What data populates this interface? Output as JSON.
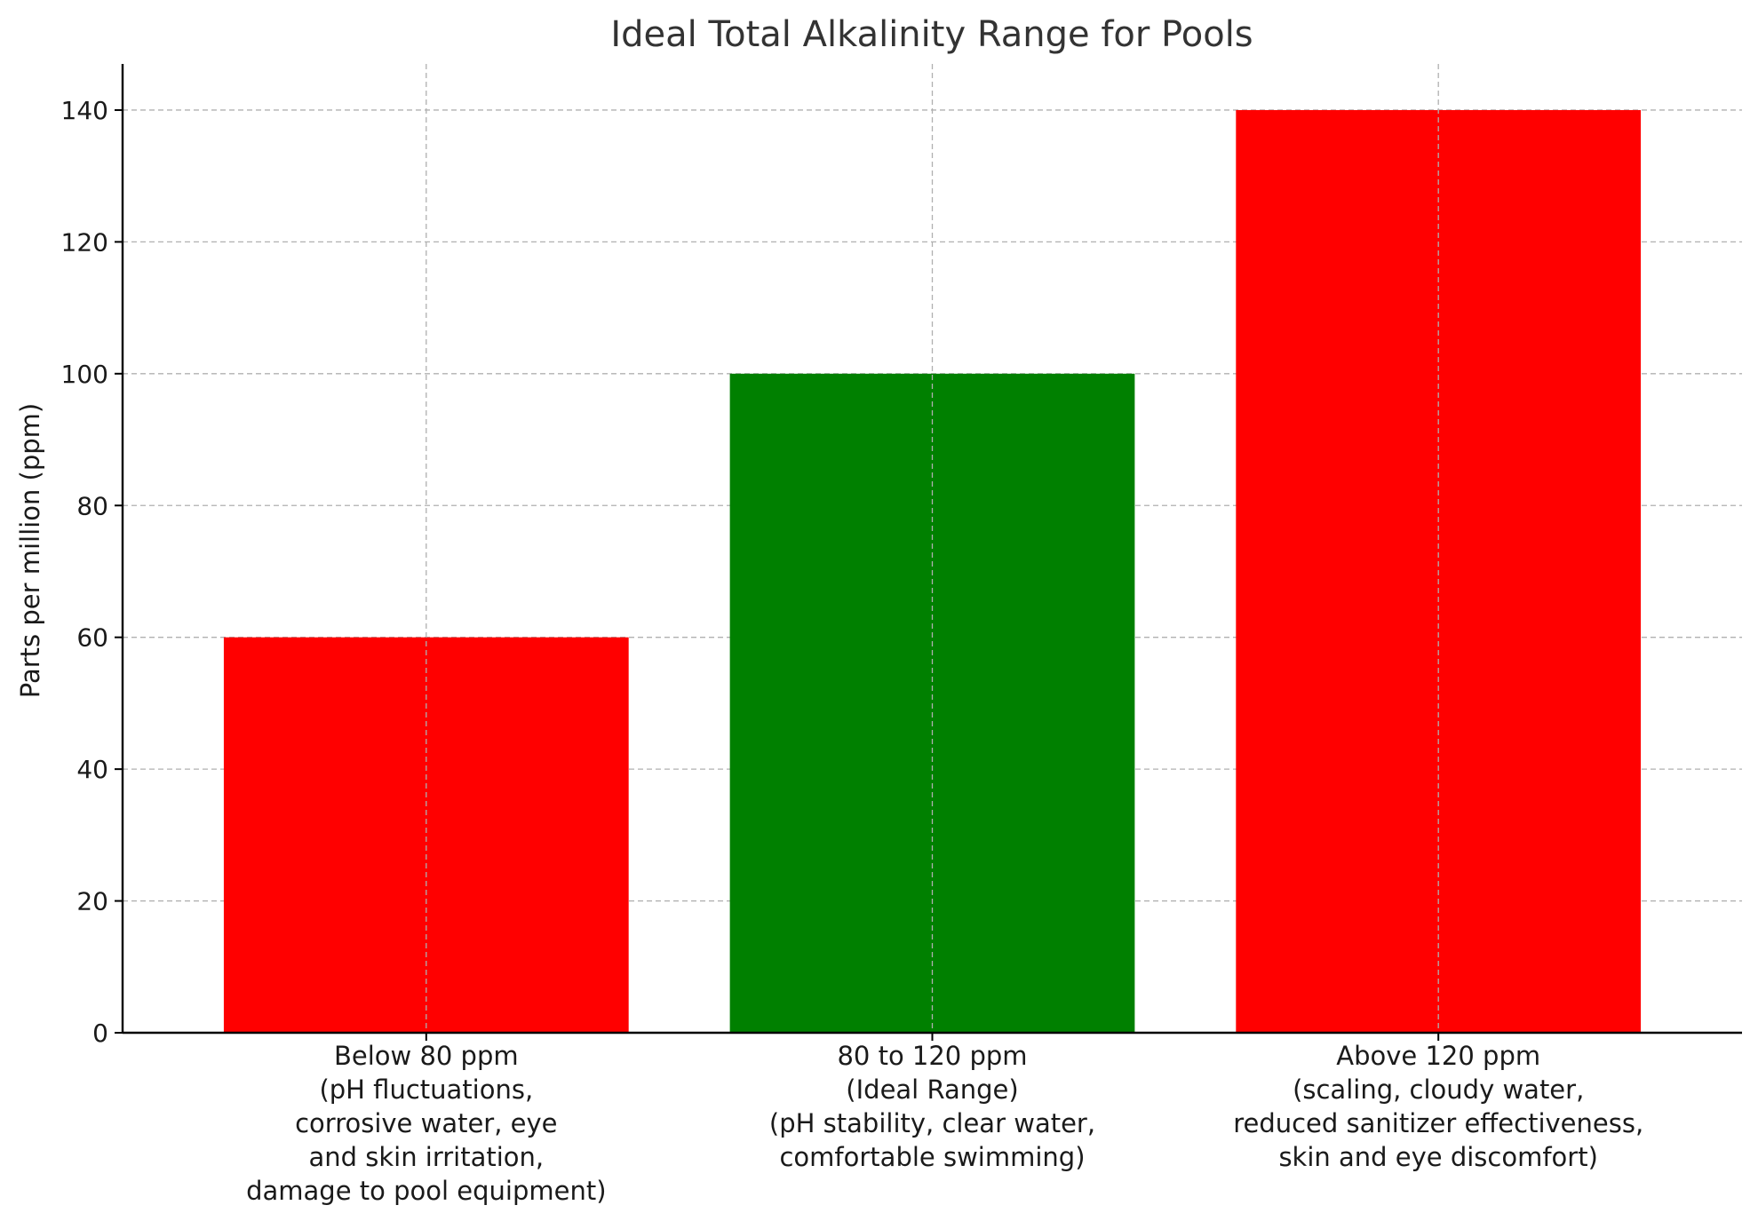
{
  "chart_data": {
    "type": "bar",
    "title": "Ideal Total Alkalinity Range for Pools",
    "xlabel": "",
    "ylabel": "Parts per million (ppm)",
    "ylim": [
      0,
      147
    ],
    "yticks": [
      0,
      20,
      40,
      60,
      80,
      100,
      120,
      140
    ],
    "grid": true,
    "categories": [
      [
        "Below 80 ppm",
        "(pH fluctuations,",
        "corrosive water, eye",
        "and skin irritation,",
        "damage to pool equipment)"
      ],
      [
        "80 to 120 ppm",
        "(Ideal Range)",
        "(pH stability, clear water,",
        "comfortable swimming)"
      ],
      [
        "Above 120 ppm",
        "(scaling, cloudy water,",
        "reduced sanitizer effectiveness,",
        "skin and eye discomfort)"
      ]
    ],
    "values": [
      60,
      100,
      140
    ],
    "colors": [
      "#ff0000",
      "#008000",
      "#ff0000"
    ]
  }
}
